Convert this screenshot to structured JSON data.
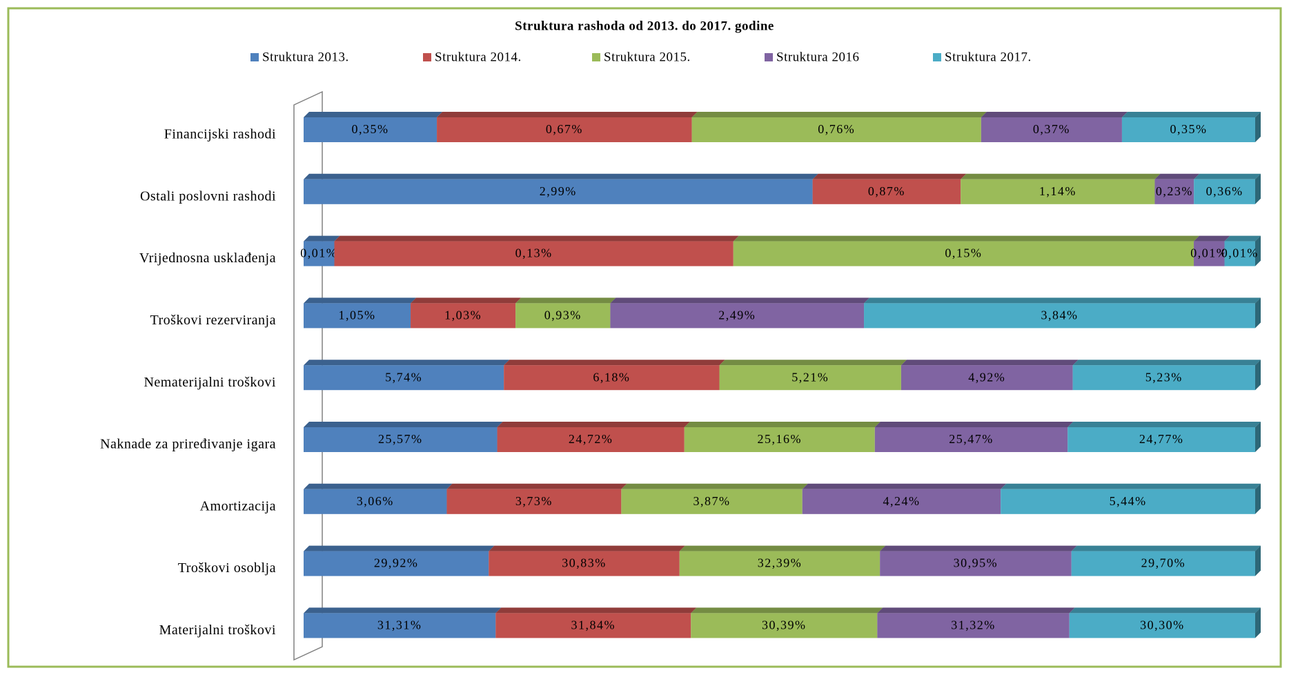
{
  "chart_data": {
    "type": "bar",
    "orientation": "horizontal",
    "stacked": "percent",
    "title": "Struktura rashoda od 2013. do 2017. godine",
    "categories": [
      "Financijski rashodi",
      "Ostali poslovni rashodi",
      "Vrijednosna usklađenja",
      "Troškovi rezerviranja",
      "Nematerijalni troškovi",
      "Naknade za priređivanje igara",
      "Amortizacija",
      "Troškovi osoblja",
      "Materijalni troškovi"
    ],
    "series": [
      {
        "name": "Struktura 2013.",
        "color": "#4f81bd",
        "values": [
          0.35,
          2.99,
          0.01,
          1.05,
          5.74,
          25.57,
          3.06,
          29.92,
          31.31
        ],
        "value_labels": [
          "0,35%",
          "2,99%",
          "0,01%",
          "1,05%",
          "5,74%",
          "25,57%",
          "3,06%",
          "29,92%",
          "31,31%"
        ]
      },
      {
        "name": "Struktura 2014.",
        "color": "#c0504d",
        "values": [
          0.67,
          0.87,
          0.13,
          1.03,
          6.18,
          24.72,
          3.73,
          30.83,
          31.84
        ],
        "value_labels": [
          "0,67%",
          "0,87%",
          "0,13%",
          "1,03%",
          "6,18%",
          "24,72%",
          "3,73%",
          "30,83%",
          "31,84%"
        ]
      },
      {
        "name": "Struktura 2015.",
        "color": "#9bbb59",
        "values": [
          0.76,
          1.14,
          0.15,
          0.93,
          5.21,
          25.16,
          3.87,
          32.39,
          30.39
        ],
        "value_labels": [
          "0,76%",
          "1,14%",
          "0,15%",
          "0,93%",
          "5,21%",
          "25,16%",
          "3,87%",
          "32,39%",
          "30,39%"
        ]
      },
      {
        "name": "Struktura 2016",
        "color": "#8064a2",
        "values": [
          0.37,
          0.23,
          0.01,
          2.49,
          4.92,
          25.47,
          4.24,
          30.95,
          31.32
        ],
        "value_labels": [
          "0,37%",
          "0,23%",
          "0,01%",
          "2,49%",
          "4,92%",
          "25,47%",
          "4,24%",
          "30,95%",
          "31,32%"
        ]
      },
      {
        "name": "Struktura 2017.",
        "color": "#4bacc6",
        "values": [
          0.35,
          0.36,
          0.01,
          3.84,
          5.23,
          24.77,
          5.44,
          29.7,
          30.3
        ],
        "value_labels": [
          "0,35%",
          "0,36%",
          "0,01%",
          "3,84%",
          "5,23%",
          "24,77%",
          "5,44%",
          "29,70%",
          "30,30%"
        ]
      }
    ]
  }
}
